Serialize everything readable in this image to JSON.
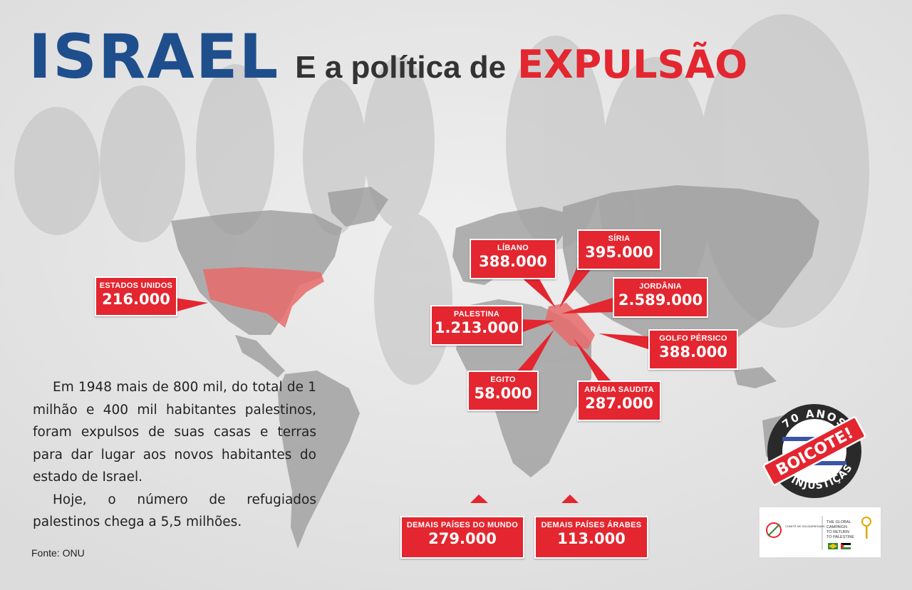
{
  "title": {
    "part1": "ISRAEL",
    "part2": "E a política de",
    "part3": "EXPULSÃO"
  },
  "regions": [
    {
      "id": "usa",
      "name": "ESTADOS UNIDOS",
      "value": "216.000"
    },
    {
      "id": "libano",
      "name": "LÍBANO",
      "value": "388.000"
    },
    {
      "id": "siria",
      "name": "SÍRIA",
      "value": "395.000"
    },
    {
      "id": "jordania",
      "name": "JORDÂNIA",
      "value": "2.589.000"
    },
    {
      "id": "palestina",
      "name": "PALESTINA",
      "value": "1.213.000"
    },
    {
      "id": "golfo",
      "name": "GOLFO PÉRSICO",
      "value": "388.000"
    },
    {
      "id": "egito",
      "name": "EGITO",
      "value": "58.000"
    },
    {
      "id": "arabia",
      "name": "ARÁBIA SAUDITA",
      "value": "287.000"
    },
    {
      "id": "mundo",
      "name": "DEMAIS PAÍSES DO MUNDO",
      "value": "279.000"
    },
    {
      "id": "arabes",
      "name": "DEMAIS PAÍSES ÁRABES",
      "value": "113.000"
    }
  ],
  "body": {
    "p1": "Em 1948 mais de 800 mil, do total de 1 milhão e 400 mil habitantes palestinos, foram expulsos de suas casas e terras para dar lugar aos novos habitantes do estado de Israel.",
    "p2": "Hoje, o número de refugiados palestinos chega a 5,5 milhões."
  },
  "source": "Fonte: ONU",
  "stamp": {
    "top": "70 ANOS",
    "center": "BOICOTE!",
    "bottom": "DE INJUSTIÇAS"
  },
  "logos": {
    "left_line1": "COMITÊ DE SOLIDARIEDADE",
    "right_line1": "THE GLOBAL",
    "right_line2": "CAMPAIGN",
    "right_line3": "TO RETURN",
    "right_line4": "TO PALESTINE"
  },
  "colors": {
    "accent_red": "#e3262f",
    "title_blue": "#1f4e8c",
    "highlight": "#e86a6a"
  }
}
